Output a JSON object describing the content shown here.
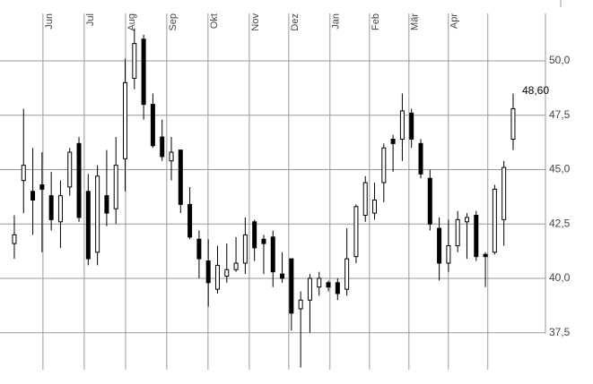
{
  "chart_data": {
    "type": "candlestick",
    "categories": [
      null,
      null,
      null,
      null,
      null,
      null,
      null,
      null,
      null,
      null,
      null,
      null,
      null,
      null,
      null,
      null,
      null,
      null,
      null,
      null,
      null,
      null,
      null,
      null,
      null,
      null,
      null,
      null,
      null,
      null,
      null,
      null,
      null,
      null,
      null,
      null,
      null,
      null,
      null,
      null,
      null,
      null,
      null,
      null,
      null,
      null,
      null,
      null,
      null,
      null,
      null,
      null,
      null,
      null,
      null
    ],
    "open": [
      41.6,
      44.5,
      44.0,
      44.3,
      43.8,
      42.6,
      44.2,
      46.2,
      44.0,
      41.2,
      43.8,
      43.2,
      45.5,
      49.2,
      51.0,
      48.0,
      46.5,
      45.4,
      45.9,
      43.4,
      41.8,
      40.8,
      39.5,
      40.1,
      40.4,
      40.7,
      42.6,
      41.8,
      41.9,
      40.2,
      40.9,
      38.6,
      39.0,
      39.6,
      39.8,
      39.8,
      39.5,
      41.0,
      42.9,
      43.0,
      44.4,
      46.4,
      46.4,
      47.6,
      46.2,
      44.6,
      42.3,
      40.7,
      41.5,
      42.6,
      42.9,
      41.1,
      41.2,
      42.7,
      46.4
    ],
    "high": [
      42.9,
      47.8,
      46.0,
      45.8,
      44.9,
      44.5,
      46.0,
      46.5,
      44.8,
      45.2,
      45.9,
      46.5,
      50.1,
      51.5,
      51.2,
      48.5,
      47.3,
      46.5,
      45.9,
      44.2,
      42.2,
      41.8,
      41.5,
      41.6,
      41.9,
      42.8,
      42.7,
      42.0,
      42.2,
      41.2,
      40.9,
      39.4,
      40.2,
      40.3,
      39.9,
      40.0,
      42.3,
      43.4,
      44.7,
      44.4,
      46.2,
      46.6,
      48.5,
      47.8,
      46.4,
      45.0,
      42.8,
      42.7,
      43.1,
      43.0,
      43.1,
      41.2,
      44.3,
      45.4,
      48.5
    ],
    "low": [
      40.9,
      43.0,
      42.0,
      41.2,
      42.2,
      41.4,
      43.8,
      42.6,
      40.6,
      40.6,
      42.4,
      42.5,
      44.0,
      48.7,
      47.3,
      46.0,
      45.4,
      44.5,
      43.0,
      41.8,
      40.0,
      38.7,
      39.3,
      39.8,
      40.3,
      40.2,
      40.8,
      40.2,
      39.6,
      39.8,
      37.6,
      35.9,
      37.5,
      39.2,
      39.4,
      39.0,
      39.2,
      40.7,
      42.6,
      42.7,
      43.5,
      44.9,
      45.4,
      46.0,
      44.6,
      42.2,
      39.9,
      40.3,
      41.2,
      40.9,
      40.8,
      39.6,
      41.1,
      41.5,
      45.9
    ],
    "close": [
      42.0,
      45.2,
      43.6,
      44.1,
      42.7,
      43.8,
      45.8,
      42.8,
      40.9,
      44.7,
      43.0,
      45.2,
      49.0,
      50.8,
      48.0,
      46.1,
      45.6,
      45.8,
      43.4,
      41.9,
      40.9,
      39.8,
      40.6,
      40.4,
      40.7,
      42.0,
      41.4,
      41.6,
      40.3,
      40.0,
      38.4,
      39.0,
      40.0,
      40.0,
      39.6,
      39.3,
      40.9,
      43.3,
      44.4,
      43.6,
      46.0,
      46.2,
      47.7,
      46.4,
      44.8,
      42.5,
      40.7,
      41.5,
      42.7,
      42.8,
      41.0,
      41.0,
      44.1,
      45.1,
      47.8
    ],
    "xlim": [
      -1.55,
      57.5
    ],
    "xticks": [
      {
        "value": 3.1,
        "label": "Jun"
      },
      {
        "value": 7.57,
        "label": "Jul"
      },
      {
        "value": 12.04,
        "label": "Aug"
      },
      {
        "value": 16.5,
        "label": "Sep"
      },
      {
        "value": 20.97,
        "label": "Okt"
      },
      {
        "value": 25.44,
        "label": "Nov"
      },
      {
        "value": 29.71,
        "label": "Dez"
      },
      {
        "value": 34.17,
        "label": "Jan"
      },
      {
        "value": 38.45,
        "label": "Feb"
      },
      {
        "value": 42.72,
        "label": "Mär"
      },
      {
        "value": 46.99,
        "label": "Apr"
      },
      {
        "value": 51.26,
        "label": null
      }
    ],
    "ylim": [
      35.8,
      52.8
    ],
    "yticks": [
      {
        "value": 37.5,
        "label": "37,5"
      },
      {
        "value": 40,
        "label": "40,0"
      },
      {
        "value": 42.5,
        "label": "42,5"
      },
      {
        "value": 45,
        "label": "45,0"
      },
      {
        "value": 47.5,
        "label": "47,5"
      },
      {
        "value": 50,
        "label": "50,0"
      }
    ],
    "annotation": {
      "value": 48.6,
      "label": "48,60"
    },
    "up_color": "#ffffff",
    "down_color": "#000000",
    "grid": true
  }
}
